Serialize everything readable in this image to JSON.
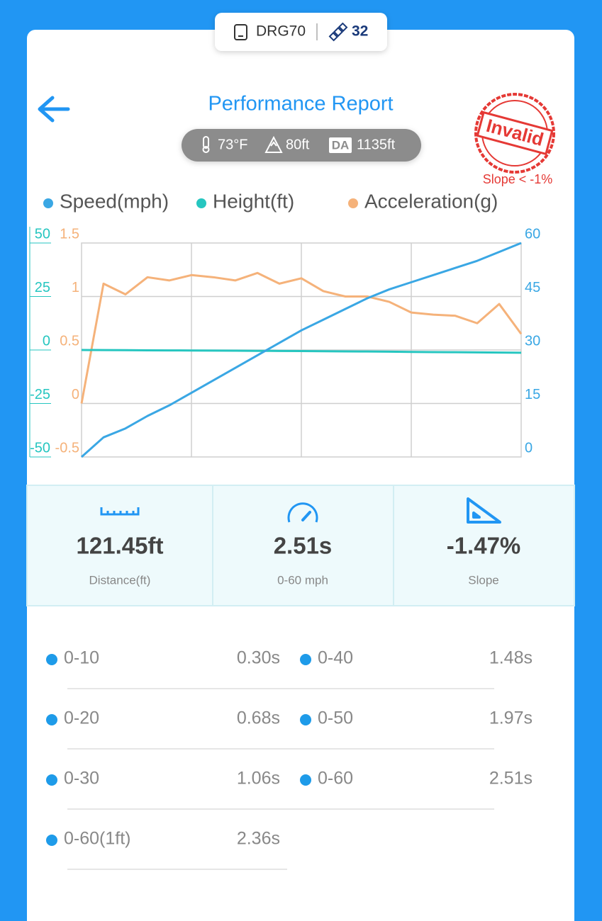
{
  "header": {
    "device": "DRG70",
    "satellites": "32"
  },
  "title": "Performance Report",
  "conditions": {
    "temperature": "73°F",
    "altitude": "80ft",
    "da_label": "DA",
    "density_altitude": "1135ft"
  },
  "stamp": {
    "text": "Invalid",
    "note": "Slope < -1%"
  },
  "chart_data": {
    "type": "line",
    "grid": true,
    "series": [
      {
        "name": "Speed(mph)",
        "color": "#3aa7e4",
        "axis": "y2",
        "ylim": [
          0,
          60
        ],
        "yticks": [
          0,
          15,
          30,
          45,
          60
        ],
        "values": [
          0,
          5.5,
          8,
          11.5,
          14.5,
          18,
          21.5,
          25,
          28.5,
          32,
          35.5,
          38.5,
          41.5,
          44.5,
          47,
          49,
          51,
          53,
          55,
          57.5,
          60
        ]
      },
      {
        "name": "Height(ft)",
        "color": "#26c6c0",
        "axis": "y",
        "ylim": [
          -50,
          50
        ],
        "yticks": [
          -50,
          -25,
          0,
          25,
          50
        ],
        "values": [
          0,
          -0.05,
          -0.1,
          -0.15,
          -0.2,
          -0.25,
          -0.3,
          -0.35,
          -0.4,
          -0.45,
          -0.5,
          -0.6,
          -0.65,
          -0.7,
          -0.8,
          -0.9,
          -1.0,
          -1.05,
          -1.1,
          -1.2,
          -1.3
        ]
      },
      {
        "name": "Acceleration(g)",
        "color": "#f5b27a",
        "axis": "y",
        "ylim": [
          -0.5,
          1.5
        ],
        "yticks": [
          -0.5,
          0,
          0.5,
          1,
          1.5
        ],
        "values": [
          0,
          1.12,
          1.02,
          1.18,
          1.15,
          1.2,
          1.18,
          1.15,
          1.22,
          1.12,
          1.17,
          1.05,
          1.0,
          1.0,
          0.95,
          0.85,
          0.83,
          0.82,
          0.75,
          0.93,
          0.65
        ]
      }
    ]
  },
  "stats": [
    {
      "value": "121.45ft",
      "label": "Distance(ft)"
    },
    {
      "value": "2.51s",
      "label": "0-60 mph"
    },
    {
      "value": "-1.47%",
      "label": "Slope"
    }
  ],
  "splits": [
    {
      "label": "0-10",
      "time": "0.30s"
    },
    {
      "label": "0-40",
      "time": "1.48s"
    },
    {
      "label": "0-20",
      "time": "0.68s"
    },
    {
      "label": "0-50",
      "time": "1.97s"
    },
    {
      "label": "0-30",
      "time": "1.06s"
    },
    {
      "label": "0-60",
      "time": "2.51s"
    },
    {
      "label": "0-60(1ft)",
      "time": "2.36s"
    }
  ]
}
